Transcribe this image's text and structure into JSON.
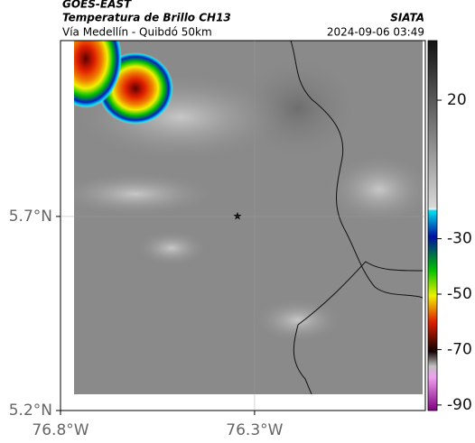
{
  "header": {
    "source": "GOES-EAST",
    "title": "Temperatura de Brillo CH13",
    "brand": "SIATA",
    "subtitle": "Vía Medellín - Quibdó 50km",
    "datetime": "2024-09-06 03:49"
  },
  "map": {
    "xlim": [
      -76.8,
      -75.86
    ],
    "ylim": [
      5.2,
      6.153
    ],
    "xticks": [
      {
        "value": -76.8,
        "label": "76.8°W"
      },
      {
        "value": -76.3,
        "label": "76.3°W"
      }
    ],
    "yticks": [
      {
        "value": 5.2,
        "label": "5.2°N"
      },
      {
        "value": 5.7,
        "label": "5.7°N"
      }
    ]
  },
  "colorbar": {
    "lim": [
      -92,
      41.5
    ],
    "ticks": [
      20,
      -30,
      -50,
      -70,
      -90
    ]
  }
}
